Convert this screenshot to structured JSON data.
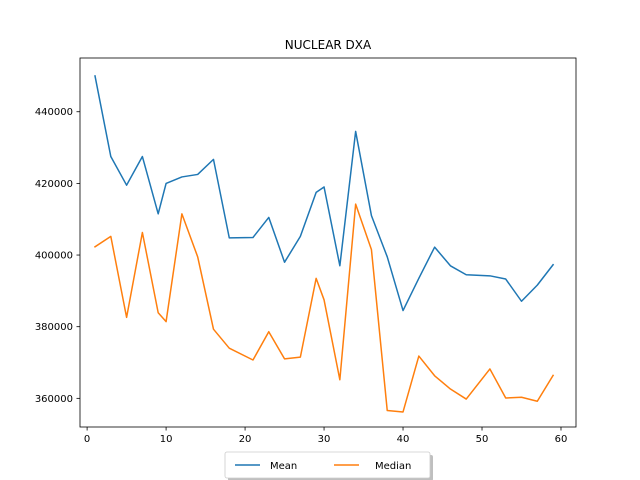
{
  "chart_data": {
    "type": "line",
    "title": "NUCLEAR DXA",
    "xlabel": "",
    "ylabel": "",
    "xlim": [
      -0.9,
      61.9
    ],
    "ylim": [
      352000,
      455000
    ],
    "xticks": [
      0,
      10,
      20,
      30,
      40,
      50,
      60
    ],
    "yticks": [
      360000,
      380000,
      400000,
      420000,
      440000
    ],
    "grid": false,
    "legend": {
      "placement": "bottom-center",
      "columns": 2
    },
    "x": [
      1,
      3,
      5,
      7,
      9,
      10,
      12,
      14,
      16,
      18,
      21,
      23,
      25,
      27,
      29,
      30,
      32,
      34,
      36,
      38,
      40,
      42,
      44,
      46,
      48,
      51,
      53,
      55,
      57,
      59
    ],
    "series": [
      {
        "name": "Mean",
        "color": "#1f77b4",
        "values": [
          450000,
          427500,
          419500,
          427500,
          411500,
          420000,
          421800,
          422500,
          426700,
          404800,
          404900,
          410500,
          398000,
          405200,
          417500,
          419000,
          397000,
          434500,
          411000,
          399500,
          384500,
          393500,
          402200,
          397000,
          394500,
          394200,
          393300,
          387100,
          391600,
          397300
        ]
      },
      {
        "name": "Median",
        "color": "#ff7f0e",
        "values": [
          402300,
          405200,
          382600,
          406300,
          383900,
          381400,
          411500,
          399500,
          379300,
          374000,
          370700,
          378600,
          371000,
          371500,
          393500,
          387500,
          365200,
          414200,
          401500,
          356600,
          356200,
          371800,
          366300,
          362600,
          359800,
          368200,
          360100,
          360300,
          359200,
          366400
        ]
      }
    ]
  }
}
